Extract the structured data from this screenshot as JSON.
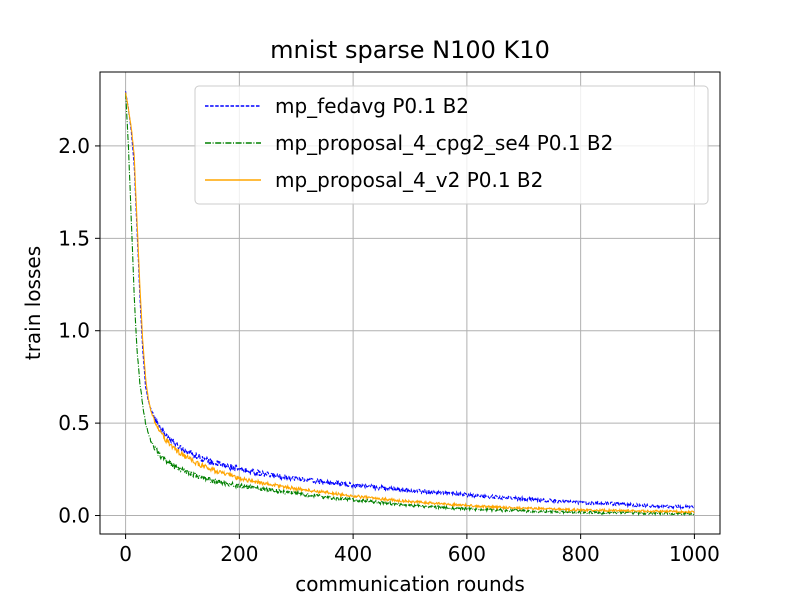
{
  "chart_data": {
    "type": "line",
    "title": "mnist sparse N100 K10",
    "xlabel": "communication rounds",
    "ylabel": "train losses",
    "xlim": [
      -45,
      1045
    ],
    "ylim": [
      -0.1,
      2.4
    ],
    "xticks": [
      0,
      200,
      400,
      600,
      800,
      1000
    ],
    "yticks": [
      0.0,
      0.5,
      1.0,
      1.5,
      2.0
    ],
    "xtick_labels": [
      "0",
      "200",
      "400",
      "600",
      "800",
      "1000"
    ],
    "ytick_labels": [
      "0.0",
      "0.5",
      "1.0",
      "1.5",
      "2.0"
    ],
    "grid": true,
    "legend_position": "top-right",
    "series": [
      {
        "name": "mp_fedavg P0.1 B2",
        "color": "#0000ff",
        "dash": "dashed",
        "noise": 0.018,
        "x": [
          0,
          5,
          10,
          15,
          20,
          25,
          30,
          35,
          40,
          45,
          50,
          60,
          70,
          80,
          90,
          100,
          120,
          150,
          200,
          250,
          300,
          350,
          400,
          450,
          500,
          550,
          600,
          650,
          700,
          750,
          800,
          850,
          900,
          950,
          1000
        ],
        "y": [
          2.29,
          2.2,
          2.08,
          1.9,
          1.55,
          1.2,
          0.9,
          0.7,
          0.62,
          0.57,
          0.54,
          0.48,
          0.44,
          0.41,
          0.38,
          0.36,
          0.33,
          0.29,
          0.25,
          0.22,
          0.2,
          0.18,
          0.165,
          0.15,
          0.135,
          0.125,
          0.11,
          0.1,
          0.09,
          0.08,
          0.07,
          0.065,
          0.055,
          0.05,
          0.045
        ]
      },
      {
        "name": "mp_proposal_4_cpg2_se4 P0.1 B2",
        "color": "#008000",
        "dash": "dashdot",
        "noise": 0.018,
        "x": [
          0,
          5,
          10,
          15,
          20,
          25,
          30,
          35,
          40,
          45,
          50,
          60,
          70,
          80,
          90,
          100,
          120,
          150,
          200,
          250,
          300,
          350,
          400,
          450,
          500,
          550,
          600,
          650,
          700,
          750,
          800,
          850,
          900,
          950,
          1000
        ],
        "y": [
          2.29,
          2.0,
          1.6,
          1.2,
          0.9,
          0.72,
          0.6,
          0.5,
          0.44,
          0.4,
          0.37,
          0.33,
          0.3,
          0.28,
          0.26,
          0.25,
          0.22,
          0.19,
          0.16,
          0.14,
          0.12,
          0.1,
          0.085,
          0.07,
          0.055,
          0.045,
          0.035,
          0.03,
          0.025,
          0.02,
          0.018,
          0.015,
          0.013,
          0.011,
          0.01
        ]
      },
      {
        "name": "mp_proposal_4_v2 P0.1 B2",
        "color": "#ffa500",
        "dash": "solid",
        "noise": 0.014,
        "x": [
          0,
          5,
          10,
          15,
          20,
          25,
          30,
          35,
          40,
          45,
          50,
          60,
          70,
          80,
          90,
          100,
          120,
          150,
          200,
          250,
          300,
          350,
          400,
          450,
          500,
          550,
          600,
          650,
          700,
          750,
          800,
          850,
          900,
          950,
          1000
        ],
        "y": [
          2.29,
          2.2,
          2.1,
          1.95,
          1.6,
          1.25,
          0.95,
          0.75,
          0.63,
          0.56,
          0.52,
          0.46,
          0.41,
          0.38,
          0.35,
          0.33,
          0.29,
          0.25,
          0.2,
          0.17,
          0.145,
          0.125,
          0.105,
          0.09,
          0.075,
          0.065,
          0.055,
          0.045,
          0.04,
          0.035,
          0.03,
          0.028,
          0.025,
          0.022,
          0.02
        ]
      }
    ]
  }
}
